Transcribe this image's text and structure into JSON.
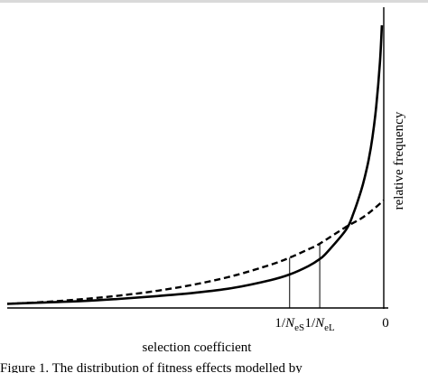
{
  "chart_data": {
    "type": "line",
    "title": "",
    "xlabel": "selection coefficient",
    "ylabel": "relative frequency",
    "x_tick_labels": [
      {
        "id": "neS",
        "prefix": "1/",
        "sym": "N",
        "sub": "eS"
      },
      {
        "id": "neL",
        "prefix": "1/",
        "sym": "N",
        "sub": "eL"
      },
      {
        "id": "zero",
        "text": "0"
      }
    ],
    "marker_x": {
      "neS": -0.25,
      "neL": -0.17,
      "zero": 0
    },
    "xlim": [
      -1,
      0
    ],
    "ylim": [
      0,
      1
    ],
    "grid": false,
    "legend": "none",
    "series": [
      {
        "style": "solid",
        "x": [
          -1.0,
          -0.9,
          -0.8,
          -0.7,
          -0.6,
          -0.5,
          -0.4,
          -0.3,
          -0.25,
          -0.2,
          -0.17,
          -0.15,
          -0.1,
          -0.08,
          -0.06,
          -0.05,
          -0.04,
          -0.03,
          -0.02,
          -0.01,
          -0.005
        ],
        "y": [
          0.005,
          0.01,
          0.015,
          0.023,
          0.033,
          0.045,
          0.062,
          0.09,
          0.11,
          0.14,
          0.165,
          0.19,
          0.27,
          0.33,
          0.41,
          0.46,
          0.52,
          0.6,
          0.71,
          0.87,
          1.0
        ]
      },
      {
        "style": "dashed",
        "x": [
          -1.0,
          -0.9,
          -0.8,
          -0.7,
          -0.6,
          -0.5,
          -0.4,
          -0.3,
          -0.25,
          -0.2,
          -0.17,
          -0.1,
          -0.06,
          -0.03,
          0.0
        ],
        "y": [
          0.005,
          0.012,
          0.022,
          0.035,
          0.052,
          0.075,
          0.105,
          0.145,
          0.17,
          0.2,
          0.22,
          0.28,
          0.31,
          0.34,
          0.375
        ]
      }
    ]
  },
  "caption": "Figure 1. The distribution of fitness effects modelled by"
}
